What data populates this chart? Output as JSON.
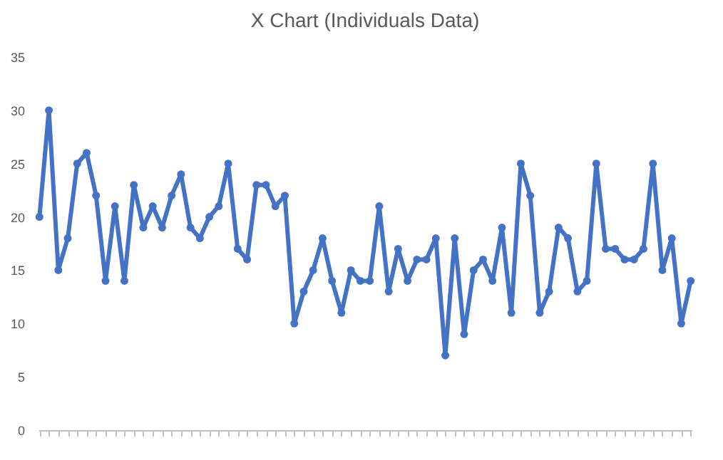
{
  "chart_data": {
    "type": "line",
    "title": "X Chart (Individuals Data)",
    "categories": [
      null,
      null,
      null,
      null,
      null,
      null,
      null,
      null,
      null,
      null,
      null,
      null,
      null,
      null,
      null,
      null,
      null,
      null,
      null,
      null,
      null,
      null,
      null,
      null,
      null,
      null,
      null,
      null,
      null,
      null,
      null,
      null,
      null,
      null,
      null,
      null,
      null,
      null,
      null,
      null,
      null,
      null,
      null,
      null,
      null,
      null,
      null,
      null,
      null,
      null,
      null,
      null,
      null,
      null,
      null,
      null,
      null,
      null,
      null,
      null,
      null,
      null,
      null,
      null,
      null,
      null,
      null,
      null,
      null,
      null
    ],
    "series": [
      {
        "color": "#4472c4",
        "values": [
          20,
          30,
          15,
          18,
          25,
          26,
          22,
          14,
          21,
          14,
          23,
          19,
          21,
          19,
          22,
          24,
          19,
          18,
          20,
          21,
          25,
          17,
          16,
          23,
          23,
          21,
          22,
          10,
          13,
          15,
          18,
          14,
          11,
          15,
          14,
          14,
          21,
          13,
          17,
          14,
          16,
          16,
          18,
          7,
          18,
          9,
          15,
          16,
          14,
          19,
          11,
          25,
          22,
          11,
          13,
          19,
          18,
          13,
          14,
          25,
          17,
          17,
          16,
          16,
          17,
          25,
          15,
          18,
          10,
          14
        ]
      }
    ],
    "ylim": [
      0,
      35
    ],
    "yticks": [
      0,
      5,
      10,
      15,
      20,
      25,
      30,
      35
    ],
    "grid": false,
    "legend": false,
    "tick_labels": "y",
    "marker": "circle",
    "line_style": "solid"
  }
}
